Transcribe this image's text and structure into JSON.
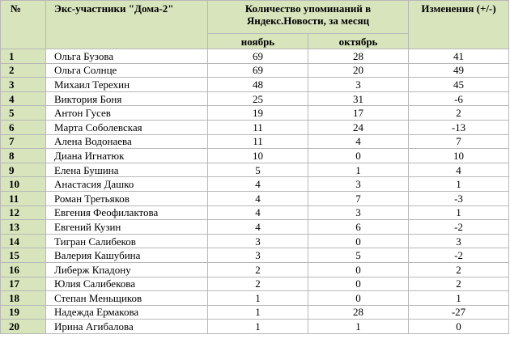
{
  "headers": {
    "num": "№",
    "name": "Экс-участники \"Дома-2\"",
    "count": "Количество упоминаний в Яндекс.Новости, за месяц",
    "change": "Изменения (+/-)",
    "nov": "ноябрь",
    "oct": "октябрь"
  },
  "rows": [
    {
      "n": "1",
      "name": "Ольга Бузова",
      "nov": "69",
      "oct": "28",
      "chg": "41"
    },
    {
      "n": "2",
      "name": "Ольга Солнце",
      "nov": "69",
      "oct": "20",
      "chg": "49"
    },
    {
      "n": "3",
      "name": "Михаил Терехин",
      "nov": "48",
      "oct": "3",
      "chg": "45"
    },
    {
      "n": "4",
      "name": "Виктория Боня",
      "nov": "25",
      "oct": "31",
      "chg": "-6"
    },
    {
      "n": "5",
      "name": "Антон Гусев",
      "nov": "19",
      "oct": "17",
      "chg": "2"
    },
    {
      "n": "6",
      "name": "Марта Соболевская",
      "nov": "11",
      "oct": "24",
      "chg": "-13"
    },
    {
      "n": "7",
      "name": "Алена Водонаева",
      "nov": "11",
      "oct": "4",
      "chg": "7"
    },
    {
      "n": "8",
      "name": "Диана Игнатюк",
      "nov": "10",
      "oct": "0",
      "chg": "10"
    },
    {
      "n": "9",
      "name": "Елена Бушина",
      "nov": "5",
      "oct": "1",
      "chg": "4"
    },
    {
      "n": "10",
      "name": "Анастасия Дашко",
      "nov": "4",
      "oct": "3",
      "chg": "1"
    },
    {
      "n": "11",
      "name": "Роман Третьяков",
      "nov": "4",
      "oct": "7",
      "chg": "-3"
    },
    {
      "n": "12",
      "name": "Евгения Феофилактова",
      "nov": "4",
      "oct": "3",
      "chg": "1"
    },
    {
      "n": "13",
      "name": "Евгений Кузин",
      "nov": "4",
      "oct": "6",
      "chg": "-2"
    },
    {
      "n": "14",
      "name": "Тигран Салибеков",
      "nov": "3",
      "oct": "0",
      "chg": "3"
    },
    {
      "n": "15",
      "name": "Валерия Кашубина",
      "nov": "3",
      "oct": "5",
      "chg": "-2"
    },
    {
      "n": "16",
      "name": "Либерж Кпадону",
      "nov": "2",
      "oct": "0",
      "chg": "2"
    },
    {
      "n": "17",
      "name": "Юлия Салибекова",
      "nov": "2",
      "oct": "0",
      "chg": "2"
    },
    {
      "n": "18",
      "name": "Степан Меньщиков",
      "nov": "1",
      "oct": "0",
      "chg": "1"
    },
    {
      "n": "19",
      "name": "Надежда Ермакова",
      "nov": "1",
      "oct": "28",
      "chg": "-27"
    },
    {
      "n": "20",
      "name": "Ирина Агибалова",
      "nov": "1",
      "oct": "1",
      "chg": "0"
    }
  ],
  "colors": {
    "header_bg": "#d8e4bc",
    "border": "#b8b8b8"
  }
}
